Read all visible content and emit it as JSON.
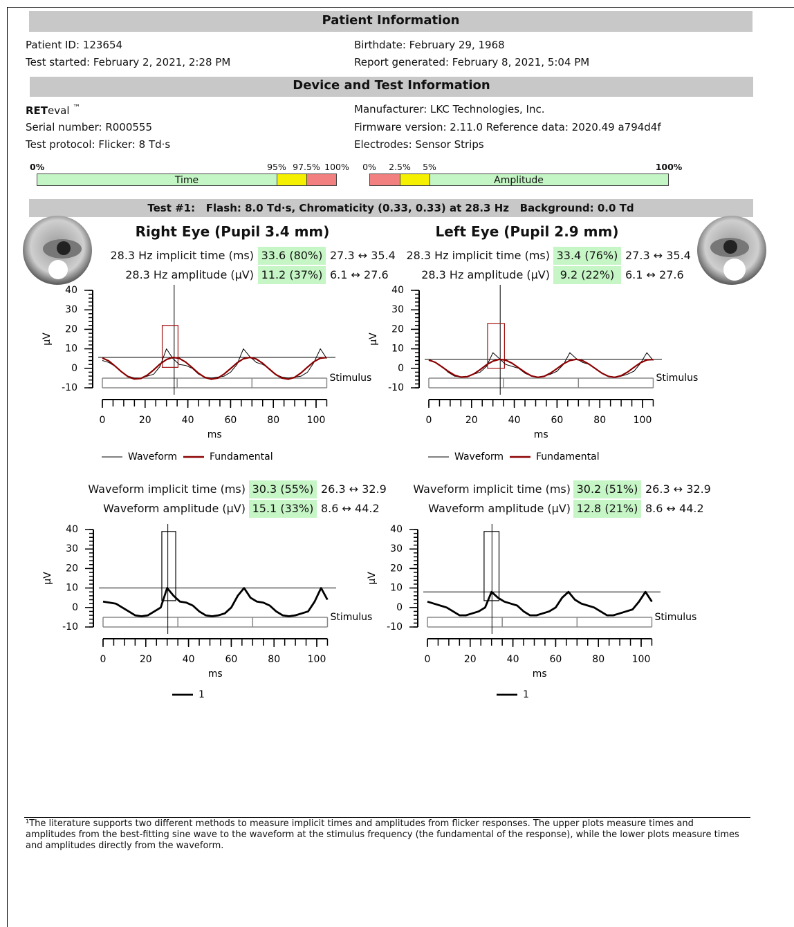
{
  "patient": {
    "title": "Patient Information",
    "fields": [
      "Patient ID: 123654",
      "Birthdate: February 29, 1968",
      "Test started: February 2, 2021, 2:28 PM",
      "Report generated: February 8, 2021, 5:04 PM"
    ]
  },
  "device": {
    "title": "Device and Test Information",
    "brand_bold": "RET",
    "brand_rest": "eval",
    "trademark": "™",
    "fields": [
      "Manufacturer: LKC Technologies, Inc.",
      "Serial number: R000555",
      "Firmware version: 2.11.0 Reference data: 2020.49 a794d4f",
      "Test protocol: Flicker: 8 Td·s",
      "Electrodes: Sensor Strips"
    ]
  },
  "scales": {
    "time": {
      "label": "Time",
      "ticks": [
        "0%",
        "95%",
        "97.5%",
        "100%"
      ]
    },
    "amplitude": {
      "label": "Amplitude",
      "ticks": [
        "0%",
        "2.5%",
        "5%",
        "100%"
      ]
    }
  },
  "test": {
    "title": "Test #1:   Flash: 8.0 Td·s, Chromaticity (0.33, 0.33) at 28.3 Hz   Background: 0.0 Td"
  },
  "eyes": [
    {
      "title": "Right Eye (Pupil 3.4 mm)",
      "fundamental_rows": [
        {
          "label": "28.3 Hz implicit time (ms)",
          "value": "33.6 (80%)",
          "range": "27.3 ↔ 35.4"
        },
        {
          "label": "28.3 Hz amplitude (µV)",
          "value": "11.2 (37%)",
          "range": "6.1 ↔ 27.6"
        }
      ],
      "upper_chart": {
        "ylabel": "µV",
        "xlabel": "ms",
        "stimulus_label": "Stimulus",
        "xlim": [
          0,
          105
        ],
        "ylim": [
          -10,
          40
        ],
        "xticks": [
          0,
          20,
          40,
          60,
          80,
          100
        ],
        "yticks": [
          -10,
          0,
          10,
          20,
          30,
          40
        ],
        "x": [
          0,
          3,
          6,
          9,
          12,
          15,
          18,
          21,
          24,
          27,
          30,
          33,
          36,
          39,
          42,
          45,
          48,
          51,
          54,
          57,
          60,
          63,
          66,
          69,
          72,
          75,
          78,
          81,
          84,
          87,
          90,
          93,
          96,
          99,
          102,
          105
        ],
        "series": [
          {
            "name": "Waveform",
            "color": "#000000",
            "values": [
              4,
              3,
              1,
              -2,
              -4,
              -5,
              -5,
              -4,
              -3,
              1,
              10,
              5,
              2,
              1.5,
              0,
              -3,
              -4.5,
              -5,
              -4.5,
              -4,
              -2,
              2,
              10,
              6,
              3,
              2,
              0,
              -3,
              -4.5,
              -5,
              -4.5,
              -4,
              -2,
              3,
              10,
              5
            ]
          },
          {
            "name": "Fundamental",
            "color": "#8b0000",
            "values": [
              5.3,
              3.8,
              1.1,
              -1.8,
              -4.3,
              -5.5,
              -5.2,
              -3.5,
              -0.8,
              2.2,
              4.5,
              5.6,
              5.1,
              3.2,
              0.4,
              -2.5,
              -4.7,
              -5.6,
              -5.0,
              -2.9,
              -0.1,
              2.8,
              4.9,
              5.6,
              4.8,
              2.6,
              -0.3,
              -3.1,
              -5.0,
              -5.6,
              -4.6,
              -2.3,
              0.6,
              3.4,
              5.2,
              5.5
            ]
          }
        ],
        "cursor": {
          "x": 33.6,
          "y": 5.6
        },
        "box": {
          "x": [
            28,
            35.4
          ],
          "y": [
            0.5,
            22
          ],
          "color": "#a01010"
        }
      },
      "waveform_rows": [
        {
          "label": "Waveform implicit time (ms)",
          "value": "30.3 (55%)",
          "range": "26.3 ↔ 32.9"
        },
        {
          "label": "Waveform amplitude (µV)",
          "value": "15.1 (33%)",
          "range": "8.6 ↔ 44.2"
        }
      ],
      "lower_chart": {
        "ylabel": "µV",
        "xlabel": "ms",
        "stimulus_label": "Stimulus",
        "xlim": [
          0,
          105
        ],
        "ylim": [
          -10,
          40
        ],
        "xticks": [
          0,
          20,
          40,
          60,
          80,
          100
        ],
        "yticks": [
          -10,
          0,
          10,
          20,
          30,
          40
        ],
        "x": [
          0,
          3,
          6,
          9,
          12,
          15,
          18,
          21,
          24,
          27,
          30,
          33,
          36,
          39,
          42,
          45,
          48,
          51,
          54,
          57,
          60,
          63,
          66,
          69,
          72,
          75,
          78,
          81,
          84,
          87,
          90,
          93,
          96,
          99,
          102,
          105
        ],
        "series": [
          {
            "name": "1",
            "color": "#000000",
            "values": [
              3,
              2.5,
              2,
              0,
              -2,
              -4,
              -4.5,
              -4,
              -2,
              0,
              10,
              6,
              3,
              2.5,
              1,
              -2,
              -4,
              -4.5,
              -4,
              -3,
              0,
              6,
              10,
              5,
              3,
              2.5,
              1,
              -2,
              -4,
              -4.5,
              -4,
              -3,
              -2,
              3,
              10,
              4
            ]
          }
        ],
        "cursor": {
          "x": 30.3,
          "y": 10
        },
        "box": {
          "x": [
            27.5,
            34
          ],
          "y": [
            3.5,
            39
          ],
          "color": "#000000"
        }
      }
    },
    {
      "title": "Left Eye (Pupil 2.9 mm)",
      "fundamental_rows": [
        {
          "label": "28.3 Hz implicit time (ms)",
          "value": "33.4 (76%)",
          "range": "27.3 ↔ 35.4"
        },
        {
          "label": "28.3 Hz amplitude (µV)",
          "value": "9.2 (22%)",
          "range": "6.1 ↔ 27.6"
        }
      ],
      "upper_chart": {
        "ylabel": "µV",
        "xlabel": "ms",
        "stimulus_label": "Stimulus",
        "xlim": [
          0,
          105
        ],
        "ylim": [
          -10,
          40
        ],
        "xticks": [
          0,
          20,
          40,
          60,
          80,
          100
        ],
        "yticks": [
          -10,
          0,
          10,
          20,
          30,
          40
        ],
        "x": [
          0,
          3,
          6,
          9,
          12,
          15,
          18,
          21,
          24,
          27,
          30,
          33,
          36,
          39,
          42,
          45,
          48,
          51,
          54,
          57,
          60,
          63,
          66,
          69,
          72,
          75,
          78,
          81,
          84,
          87,
          90,
          93,
          96,
          99,
          102,
          105
        ],
        "series": [
          {
            "name": "Waveform",
            "color": "#000000",
            "values": [
              4,
              3,
              1,
              -2,
              -4,
              -4.5,
              -4.5,
              -3,
              -2,
              1,
              8,
              5,
              2,
              1,
              0,
              -2.5,
              -4,
              -4.5,
              -4,
              -3,
              -1.5,
              2,
              8,
              5,
              3,
              2,
              0,
              -2.5,
              -4,
              -4.5,
              -4,
              -3,
              -1.5,
              2.5,
              8,
              4
            ]
          },
          {
            "name": "Fundamental",
            "color": "#8b0000",
            "values": [
              4.3,
              3.1,
              0.9,
              -1.5,
              -3.5,
              -4.5,
              -4.3,
              -2.9,
              -0.7,
              1.8,
              3.7,
              4.6,
              4.2,
              2.6,
              0.3,
              -2.0,
              -3.9,
              -4.6,
              -4.1,
              -2.4,
              -0.1,
              2.3,
              4.0,
              4.6,
              3.9,
              2.1,
              -0.2,
              -2.5,
              -4.1,
              -4.6,
              -3.8,
              -1.9,
              0.5,
              2.8,
              4.3,
              4.5
            ]
          }
        ],
        "cursor": {
          "x": 33.4,
          "y": 4.6
        },
        "box": {
          "x": [
            27.5,
            35.4
          ],
          "y": [
            0,
            23
          ],
          "color": "#a01010"
        }
      },
      "waveform_rows": [
        {
          "label": "Waveform implicit time (ms)",
          "value": "30.2 (51%)",
          "range": "26.3 ↔ 32.9"
        },
        {
          "label": "Waveform amplitude (µV)",
          "value": "12.8 (21%)",
          "range": "8.6 ↔ 44.2"
        }
      ],
      "lower_chart": {
        "ylabel": "µV",
        "xlabel": "ms",
        "stimulus_label": "Stimulus",
        "xlim": [
          0,
          105
        ],
        "ylim": [
          -10,
          40
        ],
        "xticks": [
          0,
          20,
          40,
          60,
          80,
          100
        ],
        "yticks": [
          -10,
          0,
          10,
          20,
          30,
          40
        ],
        "x": [
          0,
          3,
          6,
          9,
          12,
          15,
          18,
          21,
          24,
          27,
          30,
          33,
          36,
          39,
          42,
          45,
          48,
          51,
          54,
          57,
          60,
          63,
          66,
          69,
          72,
          75,
          78,
          81,
          84,
          87,
          90,
          93,
          96,
          99,
          102,
          105
        ],
        "series": [
          {
            "name": "1",
            "color": "#000000",
            "values": [
              3,
              2,
              1,
              0,
              -2,
              -4,
              -4,
              -3,
              -2,
              0,
              8,
              5,
              3,
              2,
              1,
              -2,
              -4,
              -4,
              -3,
              -2,
              0,
              5,
              8,
              4,
              2,
              1,
              0,
              -2,
              -4,
              -4,
              -3,
              -2,
              -1,
              3,
              8,
              3
            ]
          }
        ],
        "cursor": {
          "x": 30.2,
          "y": 8
        },
        "box": {
          "x": [
            26.5,
            33.5
          ],
          "y": [
            3.5,
            39
          ],
          "color": "#000000"
        }
      }
    }
  ],
  "footnote": "¹The literature supports two different methods to measure implicit times and amplitudes from flicker responses. The upper plots measure times and amplitudes from the best-fitting sine wave to the waveform at the stimulus frequency (the fundamental of the response), while the lower plots measure times and amplitudes directly from the waveform."
}
